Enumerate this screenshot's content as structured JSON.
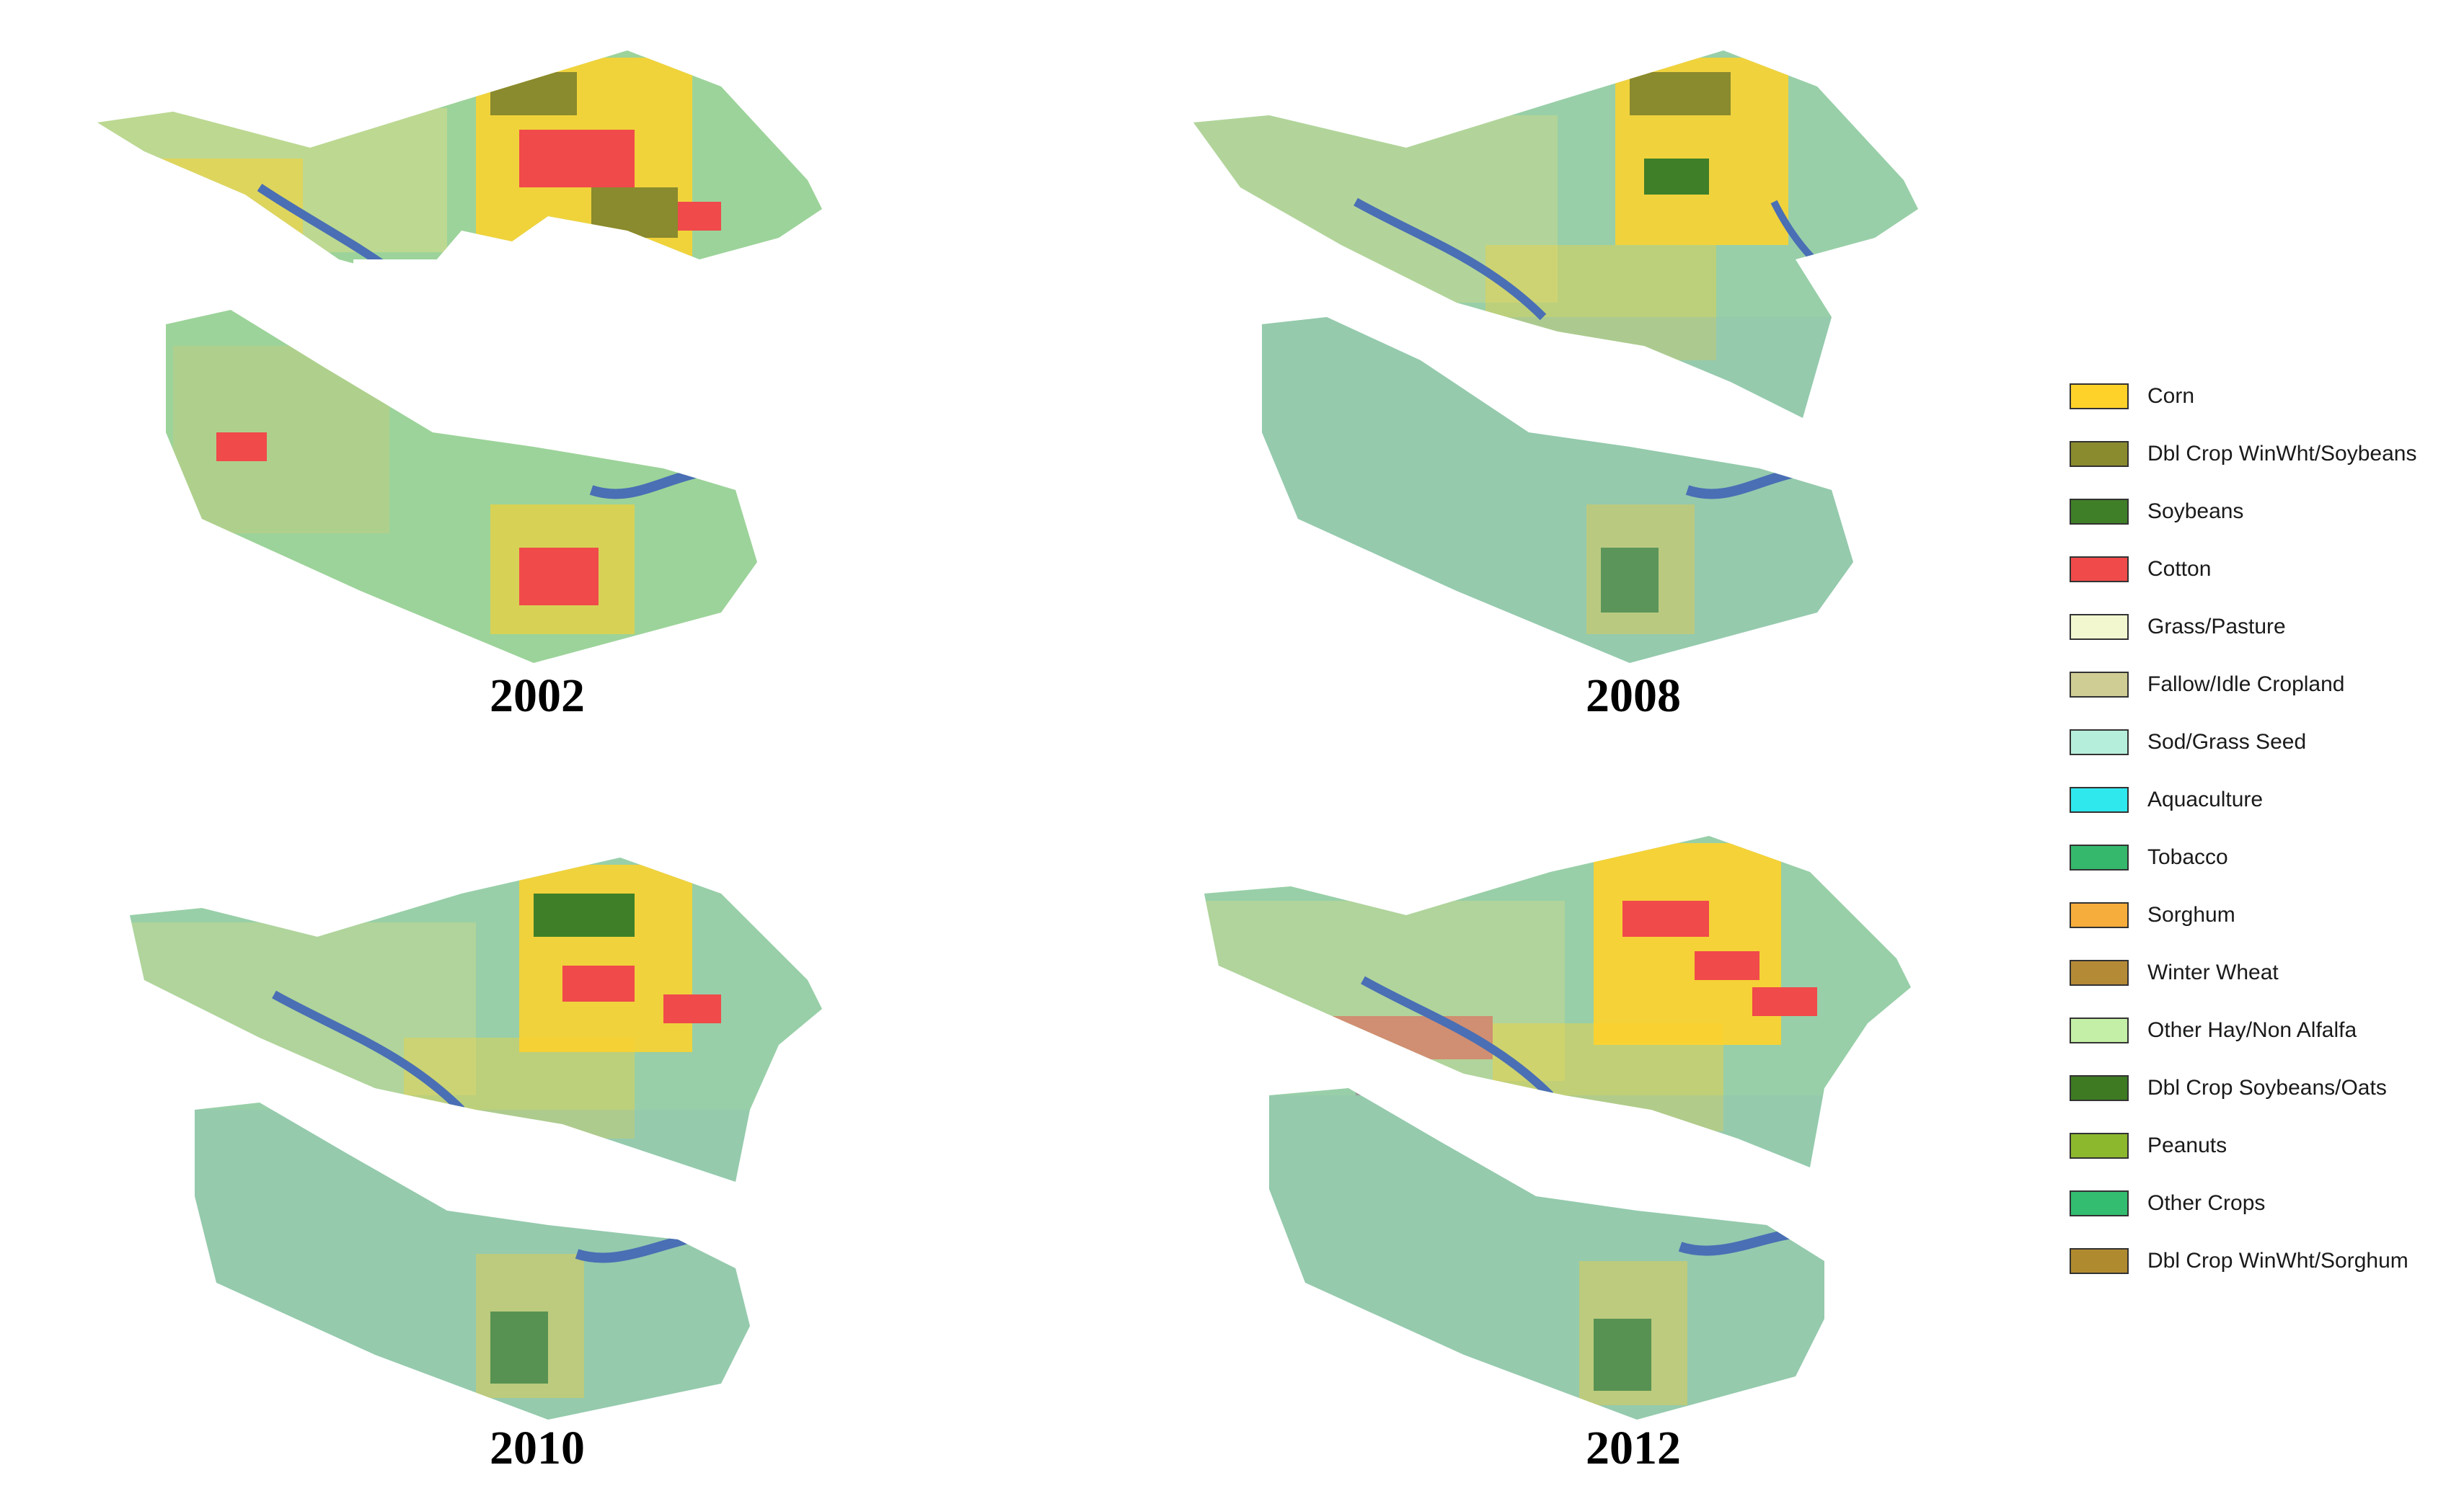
{
  "maps": [
    {
      "year": "2002",
      "base": "#9cd39a"
    },
    {
      "year": "2008",
      "base": "#98cfa8"
    },
    {
      "year": "2010",
      "base": "#98cfa8"
    },
    {
      "year": "2012",
      "base": "#98cfa8"
    }
  ],
  "legend": [
    {
      "label": "Corn",
      "color": "#ffd22a"
    },
    {
      "label": "Dbl Crop WinWht/Soybeans",
      "color": "#8a8a2e"
    },
    {
      "label": "Soybeans",
      "color": "#3f7f28"
    },
    {
      "label": "Cotton",
      "color": "#f04a4a"
    },
    {
      "label": "Grass/Pasture",
      "color": "#f2f7cf"
    },
    {
      "label": "Fallow/Idle Cropland",
      "color": "#cfcc94"
    },
    {
      "label": "Sod/Grass Seed",
      "color": "#b6eedc"
    },
    {
      "label": "Aquaculture",
      "color": "#2ee8ee"
    },
    {
      "label": "Tobacco",
      "color": "#35b86c"
    },
    {
      "label": "Sorghum",
      "color": "#f7ad3c"
    },
    {
      "label": "Winter Wheat",
      "color": "#b58a36"
    },
    {
      "label": "Other Hay/Non Alfalfa",
      "color": "#c3efa6"
    },
    {
      "label": "Dbl Crop Soybeans/Oats",
      "color": "#3d7a22"
    },
    {
      "label": "Peanuts",
      "color": "#8cb82e"
    },
    {
      "label": "Other Crops",
      "color": "#32bd70"
    },
    {
      "label": "Dbl Crop WinWht/Sorghum",
      "color": "#b08a2e"
    }
  ]
}
